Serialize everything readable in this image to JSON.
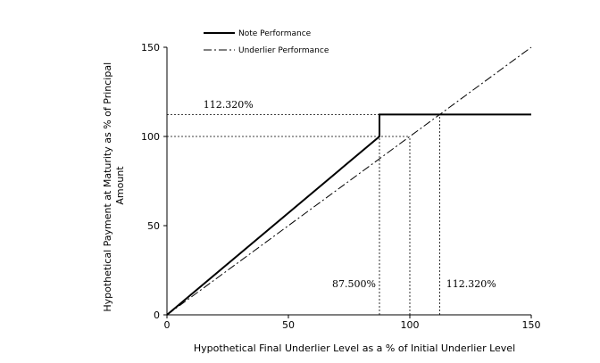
{
  "chart_data": {
    "type": "line",
    "xlabel": "Hypothetical Final Underlier Level as a % of Initial Underlier Level",
    "ylabel_lines": [
      "Hypothetical Payment at Maturity as % of Principal",
      "Amount"
    ],
    "xlim": [
      0,
      150
    ],
    "ylim": [
      0,
      150
    ],
    "x_ticks": [
      0,
      50,
      100,
      150
    ],
    "y_ticks": [
      0,
      50,
      100,
      150
    ],
    "grid": false,
    "legend_position": "top-left",
    "series": [
      {
        "name": "Note Performance",
        "style": "solid",
        "x": [
          0,
          87.5,
          87.5,
          150
        ],
        "y": [
          0,
          100,
          112.32,
          112.32
        ]
      },
      {
        "name": "Underlier Performance",
        "style": "dash-dot",
        "x": [
          0,
          150
        ],
        "y": [
          0,
          150
        ]
      }
    ],
    "reference_lines": [
      {
        "type": "hline",
        "y": 112.32,
        "x_end": 87.5
      },
      {
        "type": "hline",
        "y": 100,
        "x_end": 100
      },
      {
        "type": "vline",
        "x": 87.5,
        "y_end": 112.32
      },
      {
        "type": "vline",
        "x": 100,
        "y_end": 100
      },
      {
        "type": "vline",
        "x": 112.32,
        "y_end": 112.32
      }
    ],
    "annotations": [
      {
        "text": "112.320%",
        "x": 15,
        "y": 116
      },
      {
        "text": "87.500%",
        "x": 68,
        "y": 15.5
      },
      {
        "text": "112.320%",
        "x": 115,
        "y": 15.5
      }
    ]
  }
}
